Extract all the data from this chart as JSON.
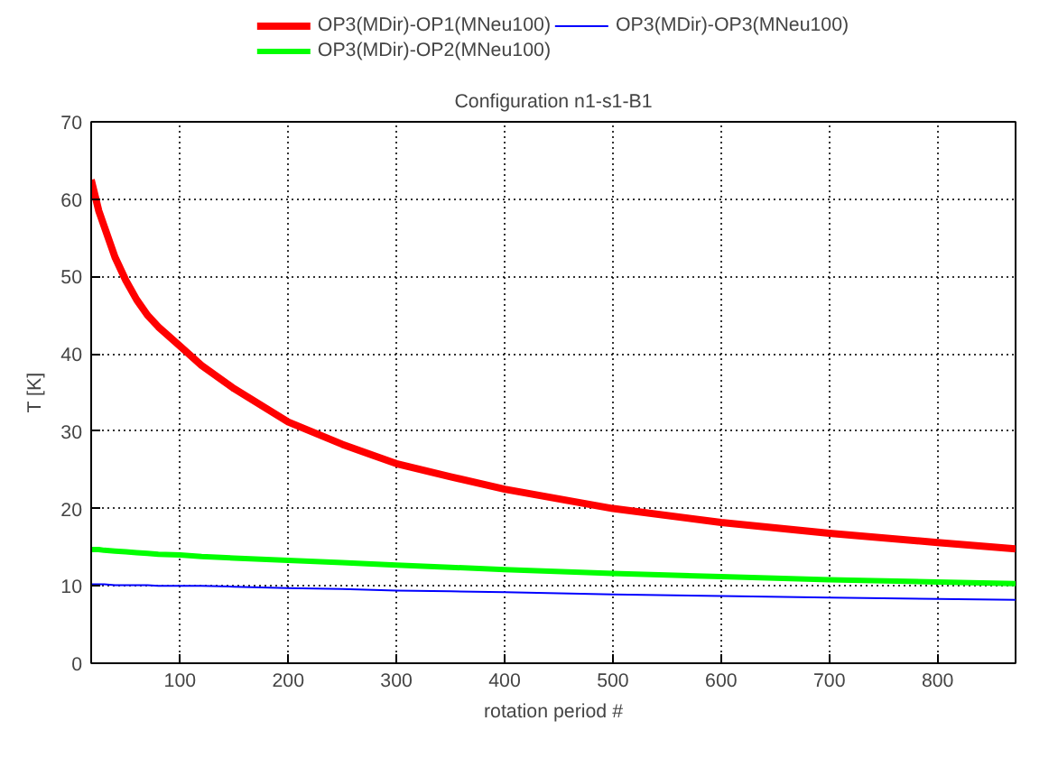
{
  "chart_data": {
    "type": "line",
    "title": "Configuration n1-s1-B1",
    "xlabel": "rotation period #",
    "ylabel": "T [K]",
    "x": [
      18,
      25,
      30,
      40,
      50,
      60,
      70,
      80,
      100,
      120,
      150,
      200,
      250,
      300,
      350,
      400,
      500,
      600,
      700,
      800,
      872
    ],
    "series": [
      {
        "name": "OP3(MDir)-OP1(MNeu100)",
        "color": "#ff0000",
        "values": [
          62.5,
          58.5,
          56.5,
          52.5,
          49.5,
          47,
          45,
          43.5,
          41,
          38.5,
          35.5,
          31.2,
          28.3,
          25.8,
          24.1,
          22.5,
          20,
          18.2,
          16.8,
          15.6,
          14.8
        ]
      },
      {
        "name": "OP3(MDir)-OP2(MNeu100)",
        "color": "#00ff00",
        "values": [
          14.7,
          14.7,
          14.6,
          14.5,
          14.4,
          14.3,
          14.2,
          14.1,
          14,
          13.8,
          13.6,
          13.3,
          13,
          12.7,
          12.4,
          12.1,
          11.6,
          11.2,
          10.8,
          10.5,
          10.3
        ]
      },
      {
        "name": "OP3(MDir)-OP3(MNeu100)",
        "color": "#0000ff",
        "values": [
          10.2,
          10.2,
          10.2,
          10.1,
          10.1,
          10.1,
          10.1,
          10,
          10,
          10,
          9.9,
          9.7,
          9.6,
          9.4,
          9.3,
          9.2,
          8.9,
          8.7,
          8.5,
          8.3,
          8.2
        ]
      }
    ],
    "xlim": [
      18,
      872
    ],
    "ylim": [
      0,
      70
    ],
    "xticks": [
      100,
      200,
      300,
      400,
      500,
      600,
      700,
      800
    ],
    "yticks": [
      0,
      10,
      20,
      30,
      40,
      50,
      60,
      70
    ],
    "grid": true,
    "legend": "top",
    "marker": "none",
    "line_style": "solid"
  }
}
